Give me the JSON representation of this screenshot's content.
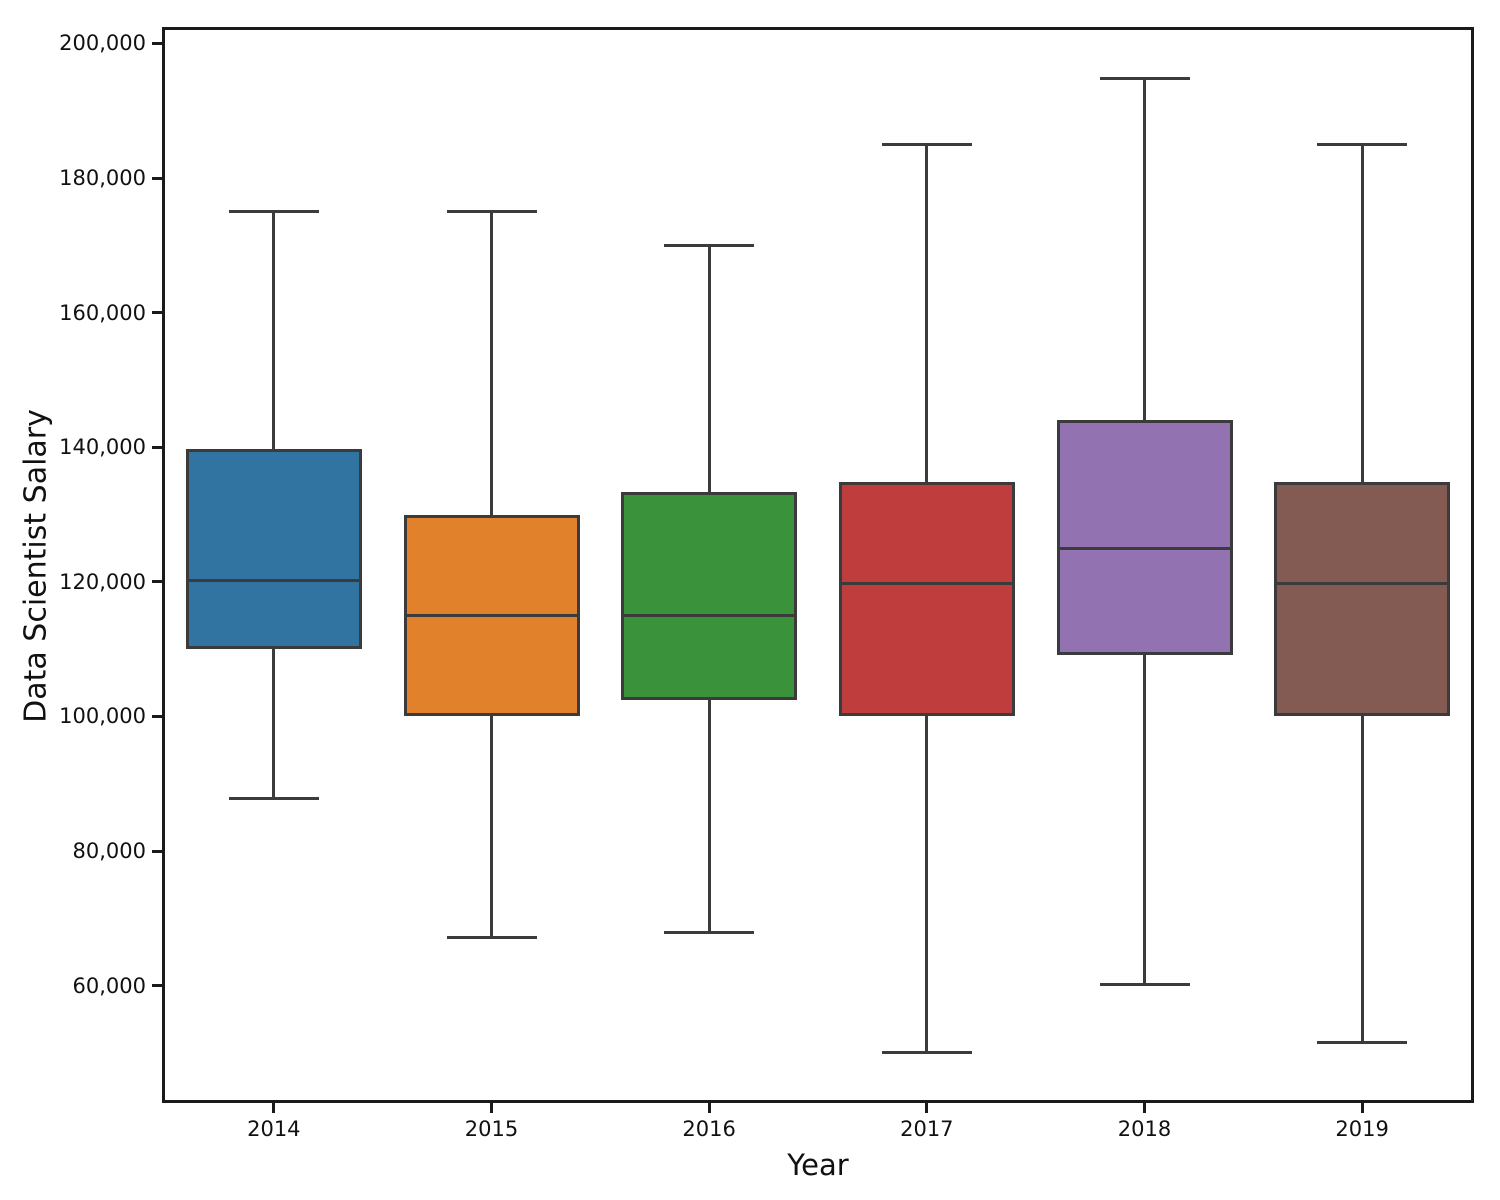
{
  "figure": {
    "background_color": "#ffffff",
    "frame_color": "#1a1a1a",
    "box_line_color": "#3b3b3b"
  },
  "chart_data": {
    "type": "boxplot",
    "title": "",
    "xlabel": "Year",
    "ylabel": "Data Scientist Salary",
    "categories": [
      "2014",
      "2015",
      "2016",
      "2017",
      "2018",
      "2019"
    ],
    "ylim": [
      43000,
      202000
    ],
    "yticks": [
      60000,
      80000,
      100000,
      120000,
      140000,
      160000,
      180000,
      200000
    ],
    "ytick_labels": [
      "60,000",
      "80,000",
      "100,000",
      "120,000",
      "140,000",
      "160,000",
      "180,000",
      "200,000"
    ],
    "grid": false,
    "legend": null,
    "orientation": "vertical",
    "boxes": [
      {
        "category": "2014",
        "color": "#3274a1",
        "whisker_low": 87800,
        "q1": 110000,
        "median": 120200,
        "q3": 139700,
        "whisker_high": 175000
      },
      {
        "category": "2015",
        "color": "#e1812c",
        "whisker_low": 67200,
        "q1": 100000,
        "median": 115000,
        "q3": 130000,
        "whisker_high": 175000
      },
      {
        "category": "2016",
        "color": "#3a923a",
        "whisker_low": 67900,
        "q1": 102500,
        "median": 115000,
        "q3": 133300,
        "whisker_high": 170000
      },
      {
        "category": "2017",
        "color": "#c03d3e",
        "whisker_low": 50000,
        "q1": 100000,
        "median": 119700,
        "q3": 134900,
        "whisker_high": 185000
      },
      {
        "category": "2018",
        "color": "#9372b2",
        "whisker_low": 60100,
        "q1": 109200,
        "median": 125000,
        "q3": 144000,
        "whisker_high": 194800
      },
      {
        "category": "2019",
        "color": "#845b53",
        "whisker_low": 51500,
        "q1": 100000,
        "median": 119700,
        "q3": 134900,
        "whisker_high": 185000
      }
    ]
  }
}
